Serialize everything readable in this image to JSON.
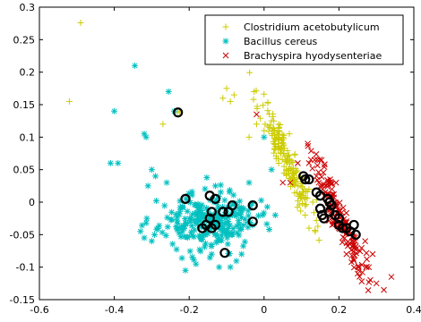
{
  "chart_data": {
    "type": "scatter",
    "title": "",
    "xlabel": "",
    "ylabel": "",
    "xlim": [
      -0.6,
      0.4
    ],
    "ylim": [
      -0.15,
      0.3
    ],
    "xticks": [
      -0.6,
      -0.4,
      -0.2,
      0,
      0.2,
      0.4
    ],
    "xtick_labels": [
      "-0.6",
      "-0.4",
      "-0.2",
      "0",
      "0.2",
      "0.4"
    ],
    "yticks": [
      -0.15,
      -0.1,
      -0.05,
      0,
      0.05,
      0.1,
      0.15,
      0.2,
      0.25,
      0.3
    ],
    "ytick_labels": [
      "-0.15",
      "-0.1",
      "-0.05",
      "0",
      "0.05",
      "0.1",
      "0.15",
      "0.2",
      "0.25",
      "0.3"
    ],
    "grid": false,
    "legend_position": "top-right",
    "series": [
      {
        "name": "Clostridium acetobutylicum",
        "marker": "plus",
        "color": "#cccc00",
        "cluster": {
          "center": [
            0.06,
            0.065
          ],
          "spread": [
            0.035,
            0.03
          ],
          "count": 180,
          "seed": 11
        },
        "points": [
          [
            -0.49,
            0.276
          ],
          [
            -0.52,
            0.155
          ],
          [
            -0.27,
            0.12
          ],
          [
            -0.225,
            0.14
          ],
          [
            -0.23,
            0.138
          ],
          [
            -0.1,
            0.175
          ],
          [
            -0.11,
            0.16
          ],
          [
            -0.08,
            0.165
          ],
          [
            -0.09,
            0.155
          ],
          [
            -0.02,
            0.12
          ],
          [
            -0.04,
            0.1
          ],
          [
            0.0,
            0.11
          ],
          [
            0.12,
            0.02
          ],
          [
            0.13,
            0.0
          ],
          [
            0.11,
            -0.02
          ],
          [
            0.12,
            -0.04
          ],
          [
            0.04,
            0.11
          ]
        ]
      },
      {
        "name": "Bacillus cereus",
        "marker": "star",
        "color": "#00c0c0",
        "cluster": {
          "center": [
            -0.15,
            -0.03
          ],
          "spread": [
            0.065,
            0.022
          ],
          "count": 260,
          "seed": 23
        },
        "points": [
          [
            -0.4,
            0.14
          ],
          [
            -0.41,
            0.06
          ],
          [
            -0.39,
            0.06
          ],
          [
            -0.32,
            0.105
          ],
          [
            -0.315,
            0.1
          ],
          [
            -0.255,
            0.17
          ],
          [
            -0.24,
            0.14
          ],
          [
            -0.345,
            0.21
          ],
          [
            -0.3,
            0.05
          ],
          [
            -0.29,
            0.04
          ],
          [
            -0.26,
            0.03
          ],
          [
            -0.12,
            -0.1
          ],
          [
            -0.09,
            -0.1
          ],
          [
            -0.21,
            -0.105
          ],
          [
            -0.14,
            -0.08
          ],
          [
            -0.06,
            -0.08
          ],
          [
            0.02,
            0.05
          ],
          [
            0.0,
            0.1
          ],
          [
            -0.04,
            0.03
          ],
          [
            0.03,
            -0.02
          ],
          [
            -0.31,
            0.025
          ],
          [
            -0.33,
            -0.045
          ],
          [
            -0.32,
            -0.055
          ],
          [
            -0.3,
            -0.06
          ]
        ]
      },
      {
        "name": "Brachyspira hyodysenteriae",
        "marker": "x",
        "color": "#cc0000",
        "cluster": {
          "center": [
            0.2,
            -0.02
          ],
          "spread": [
            0.035,
            0.028
          ],
          "count": 150,
          "seed": 37
        },
        "points": [
          [
            -0.02,
            0.135
          ],
          [
            0.3,
            -0.125
          ],
          [
            0.32,
            -0.135
          ],
          [
            0.34,
            -0.115
          ],
          [
            0.28,
            -0.1
          ],
          [
            0.25,
            -0.11
          ],
          [
            0.29,
            -0.08
          ],
          [
            0.27,
            -0.06
          ],
          [
            0.14,
            0.04
          ],
          [
            0.12,
            0.06
          ],
          [
            0.09,
            0.06
          ],
          [
            0.07,
            0.03
          ],
          [
            0.05,
            0.03
          ],
          [
            0.24,
            -0.09
          ],
          [
            0.22,
            -0.08
          ]
        ]
      }
    ],
    "highlighted": {
      "marker": "circle",
      "color": "#000000",
      "points": [
        [
          -0.23,
          0.138
        ],
        [
          -0.21,
          0.005
        ],
        [
          -0.145,
          0.01
        ],
        [
          -0.13,
          0.005
        ],
        [
          -0.14,
          -0.015
        ],
        [
          -0.145,
          -0.025
        ],
        [
          -0.155,
          -0.035
        ],
        [
          -0.14,
          -0.04
        ],
        [
          -0.165,
          -0.04
        ],
        [
          -0.13,
          -0.035
        ],
        [
          -0.11,
          -0.015
        ],
        [
          -0.095,
          -0.015
        ],
        [
          -0.085,
          -0.005
        ],
        [
          -0.03,
          -0.005
        ],
        [
          -0.03,
          -0.03
        ],
        [
          -0.105,
          -0.078
        ],
        [
          0.105,
          0.04
        ],
        [
          0.11,
          0.035
        ],
        [
          0.12,
          0.035
        ],
        [
          0.14,
          0.015
        ],
        [
          0.15,
          0.01
        ],
        [
          0.17,
          0.005
        ],
        [
          0.175,
          0.0
        ],
        [
          0.18,
          -0.005
        ],
        [
          0.15,
          -0.01
        ],
        [
          0.155,
          -0.02
        ],
        [
          0.16,
          -0.025
        ],
        [
          0.175,
          -0.015
        ],
        [
          0.19,
          -0.02
        ],
        [
          0.2,
          -0.025
        ],
        [
          0.2,
          -0.035
        ],
        [
          0.21,
          -0.04
        ],
        [
          0.22,
          -0.04
        ],
        [
          0.23,
          -0.045
        ],
        [
          0.24,
          -0.035
        ],
        [
          0.245,
          -0.05
        ]
      ]
    }
  }
}
